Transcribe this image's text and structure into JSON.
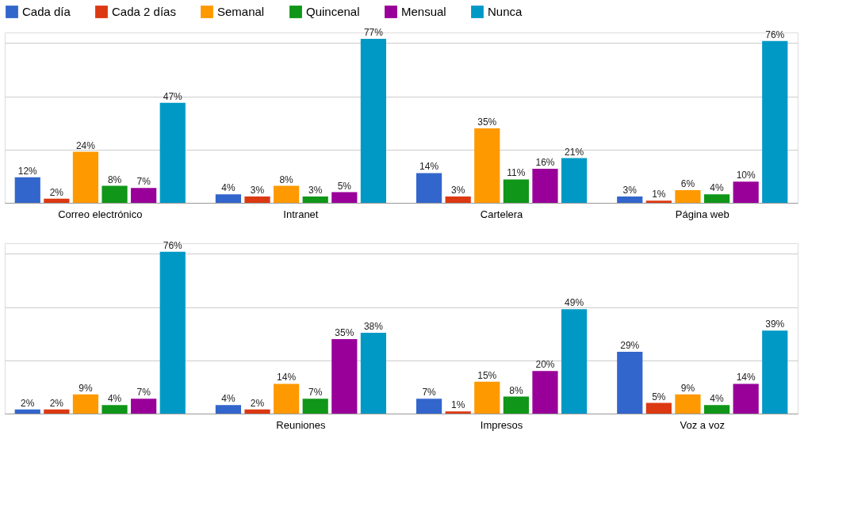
{
  "chart_data": [
    {
      "type": "bar",
      "categories": [
        "Correo electrónico",
        "Intranet",
        "Cartelera",
        "Página web"
      ],
      "ylim": [
        0,
        80
      ],
      "yticks": [
        {
          "value": 0,
          "label": null
        },
        {
          "value": 25,
          "label": null
        },
        {
          "value": 50,
          "label": null
        },
        {
          "value": 75,
          "label": null
        }
      ],
      "tick_labels": "x",
      "grid": "y",
      "legend": "top",
      "series": [
        {
          "name": "Cada día",
          "color": "#3366cc",
          "values": [
            12,
            4,
            14,
            3
          ],
          "value_labels": [
            "12%",
            "4%",
            "14%",
            "3%"
          ]
        },
        {
          "name": "Cada 2 días",
          "color": "#dc3912",
          "values": [
            2,
            3,
            3,
            1
          ],
          "value_labels": [
            "2%",
            "3%",
            "3%",
            "1%"
          ]
        },
        {
          "name": "Semanal",
          "color": "#ff9900",
          "values": [
            24,
            8,
            35,
            6
          ],
          "value_labels": [
            "24%",
            "8%",
            "35%",
            "6%"
          ]
        },
        {
          "name": "Quincenal",
          "color": "#109618",
          "values": [
            8,
            3,
            11,
            4
          ],
          "value_labels": [
            "8%",
            "3%",
            "11%",
            "4%"
          ]
        },
        {
          "name": "Mensual",
          "color": "#990099",
          "values": [
            7,
            5,
            16,
            10
          ],
          "value_labels": [
            "7%",
            "5%",
            "16%",
            "10%"
          ]
        },
        {
          "name": "Nunca",
          "color": "#0099c6",
          "values": [
            47,
            77,
            21,
            76
          ],
          "value_labels": [
            "47%",
            "77%",
            "21%",
            "76%"
          ]
        }
      ]
    },
    {
      "type": "bar",
      "categories": [
        null,
        "Reuniones",
        "Impresos",
        "Voz a voz"
      ],
      "ylim": [
        0,
        80
      ],
      "yticks": [
        {
          "value": 0,
          "label": null
        },
        {
          "value": 25,
          "label": null
        },
        {
          "value": 50,
          "label": null
        },
        {
          "value": 75,
          "label": null
        }
      ],
      "tick_labels": "x",
      "grid": "y",
      "legend": false,
      "series": [
        {
          "color": "#3366cc",
          "values": [
            2,
            4,
            7,
            29
          ],
          "value_labels": [
            "2%",
            "4%",
            "7%",
            "29%"
          ]
        },
        {
          "color": "#dc3912",
          "values": [
            2,
            2,
            1,
            5
          ],
          "value_labels": [
            "2%",
            "2%",
            "1%",
            "5%"
          ]
        },
        {
          "color": "#ff9900",
          "values": [
            9,
            14,
            15,
            9
          ],
          "value_labels": [
            "9%",
            "14%",
            "15%",
            "9%"
          ]
        },
        {
          "color": "#109618",
          "values": [
            4,
            7,
            8,
            4
          ],
          "value_labels": [
            "4%",
            "7%",
            "8%",
            "4%"
          ]
        },
        {
          "color": "#990099",
          "values": [
            7,
            35,
            20,
            14
          ],
          "value_labels": [
            "7%",
            "35%",
            "20%",
            "14%"
          ]
        },
        {
          "color": "#0099c6",
          "values": [
            76,
            38,
            49,
            39
          ],
          "value_labels": [
            "76%",
            "38%",
            "49%",
            "39%"
          ]
        }
      ]
    }
  ]
}
